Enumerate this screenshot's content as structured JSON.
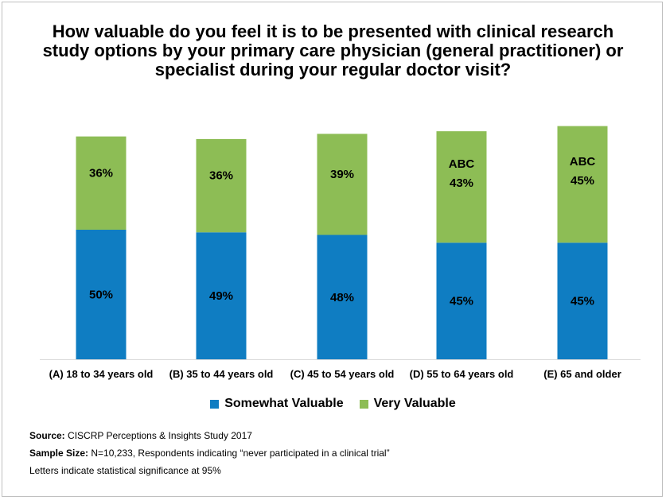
{
  "chart_data": {
    "type": "bar",
    "stacked": true,
    "title": "How valuable do you feel it is to be presented with clinical research study options by your primary care physician (general practitioner) or specialist during your regular doctor visit?",
    "categories": [
      "(A) 18 to 34 years old",
      "(B) 35 to 44 years old",
      "(C) 45 to 54 years old",
      "(D) 55 to 64 years old",
      "(E) 65 and older"
    ],
    "series": [
      {
        "name": "Somewhat Valuable",
        "color": "#0f7dc2",
        "values": [
          50,
          49,
          48,
          45,
          45
        ],
        "labels": [
          "50%",
          "49%",
          "48%",
          "45%",
          "45%"
        ]
      },
      {
        "name": "Very Valuable",
        "color": "#8dbd55",
        "values": [
          36,
          36,
          39,
          43,
          45
        ],
        "labels": [
          "36%",
          "36%",
          "39%",
          "43%",
          "45%"
        ]
      }
    ],
    "significance": [
      "",
      "",
      "",
      "ABC",
      "ABC"
    ],
    "ylim": [
      0,
      100
    ],
    "xlabel": "",
    "ylabel": "",
    "grid": false,
    "legend_position": "bottom"
  },
  "notes": {
    "source_label": "Source:",
    "source_text": " CISCRP Perceptions & Insights Study 2017",
    "sample_label": "Sample Size:",
    "sample_text": " N=10,233, Respondents indicating “never participated in a clinical trial”",
    "significance_text": "Letters indicate statistical significance at 95%"
  },
  "colors": {
    "axis": "#d9d9d9"
  }
}
